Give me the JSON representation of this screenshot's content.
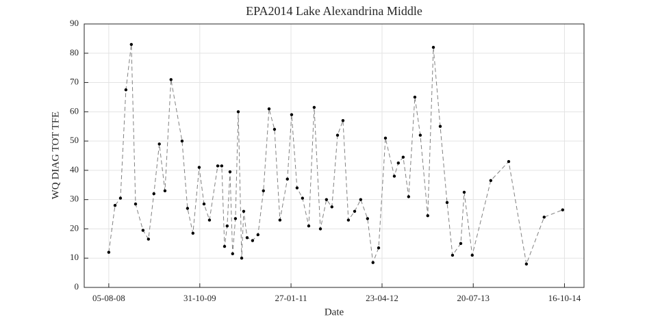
{
  "chart_data": {
    "type": "line",
    "title": "EPA2014 Lake Alexandrina Middle",
    "x_label": "Date",
    "y_label": "WQ DIAG TOT TFE",
    "x": [
      "05-08-08",
      "05-09-08",
      "02-10-08",
      "29-10-08",
      "25-11-08",
      "16-12-08",
      "22-01-09",
      "18-02-09",
      "17-03-09",
      "13-04-09",
      "11-05-09",
      "10-06-09",
      "04-08-09",
      "31-08-09",
      "27-09-09",
      "28-10-09",
      "21-11-09",
      "18-12-09",
      "28-01-10",
      "17-02-10",
      "03-03-10",
      "16-03-10",
      "30-03-10",
      "12-04-10",
      "26-04-10",
      "10-05-10",
      "27-05-10",
      "06-06-10",
      "23-06-10",
      "20-07-10",
      "16-08-10",
      "12-09-10",
      "10-10-10",
      "06-11-10",
      "03-12-10",
      "09-01-11",
      "30-01-11",
      "26-02-11",
      "25-03-11",
      "25-04-11",
      "22-05-11",
      "22-06-11",
      "22-07-11",
      "18-08-11",
      "15-09-11",
      "12-10-11",
      "08-11-11",
      "09-12-11",
      "08-01-12",
      "11-02-12",
      "09-03-12",
      "06-04-12",
      "10-05-12",
      "23-06-12",
      "13-07-12",
      "06-08-12",
      "02-09-12",
      "03-10-12",
      "30-10-12",
      "06-12-12",
      "03-01-13",
      "06-02-13",
      "12-03-13",
      "08-04-13",
      "19-05-13",
      "05-06-13",
      "15-07-13",
      "15-10-13",
      "12-01-14",
      "10-04-14",
      "07-07-14",
      "07-10-14"
    ],
    "values": [
      12,
      28,
      30.5,
      67.5,
      83,
      28.5,
      19.5,
      16.5,
      32,
      49,
      33,
      71,
      50,
      27,
      18.5,
      41,
      28.5,
      23,
      41.5,
      41.5,
      14,
      21,
      39.5,
      11.5,
      23.5,
      60,
      10,
      26,
      17,
      16,
      18,
      33,
      61,
      54,
      23,
      37,
      59,
      34,
      30.5,
      21,
      61.5,
      20,
      30,
      27.5,
      52,
      57,
      23,
      26,
      30,
      23.5,
      8.5,
      13.5,
      51,
      38,
      42.5,
      44.5,
      31,
      65,
      52,
      24.5,
      82,
      55,
      29,
      11,
      15,
      32.5,
      11,
      36.5,
      43,
      8,
      24,
      26.5
    ],
    "color": "#808080",
    "marker_color": "#000000",
    "xlim": [
      "05-04-08",
      "21-01-15"
    ],
    "xticks": [
      "05-08-08",
      "31-10-09",
      "27-01-11",
      "23-04-12",
      "20-07-13",
      "16-10-14"
    ],
    "ylim": [
      0,
      90
    ],
    "yticks": [
      0,
      10,
      20,
      30,
      40,
      50,
      60,
      70,
      80,
      90
    ],
    "grid": true
  }
}
